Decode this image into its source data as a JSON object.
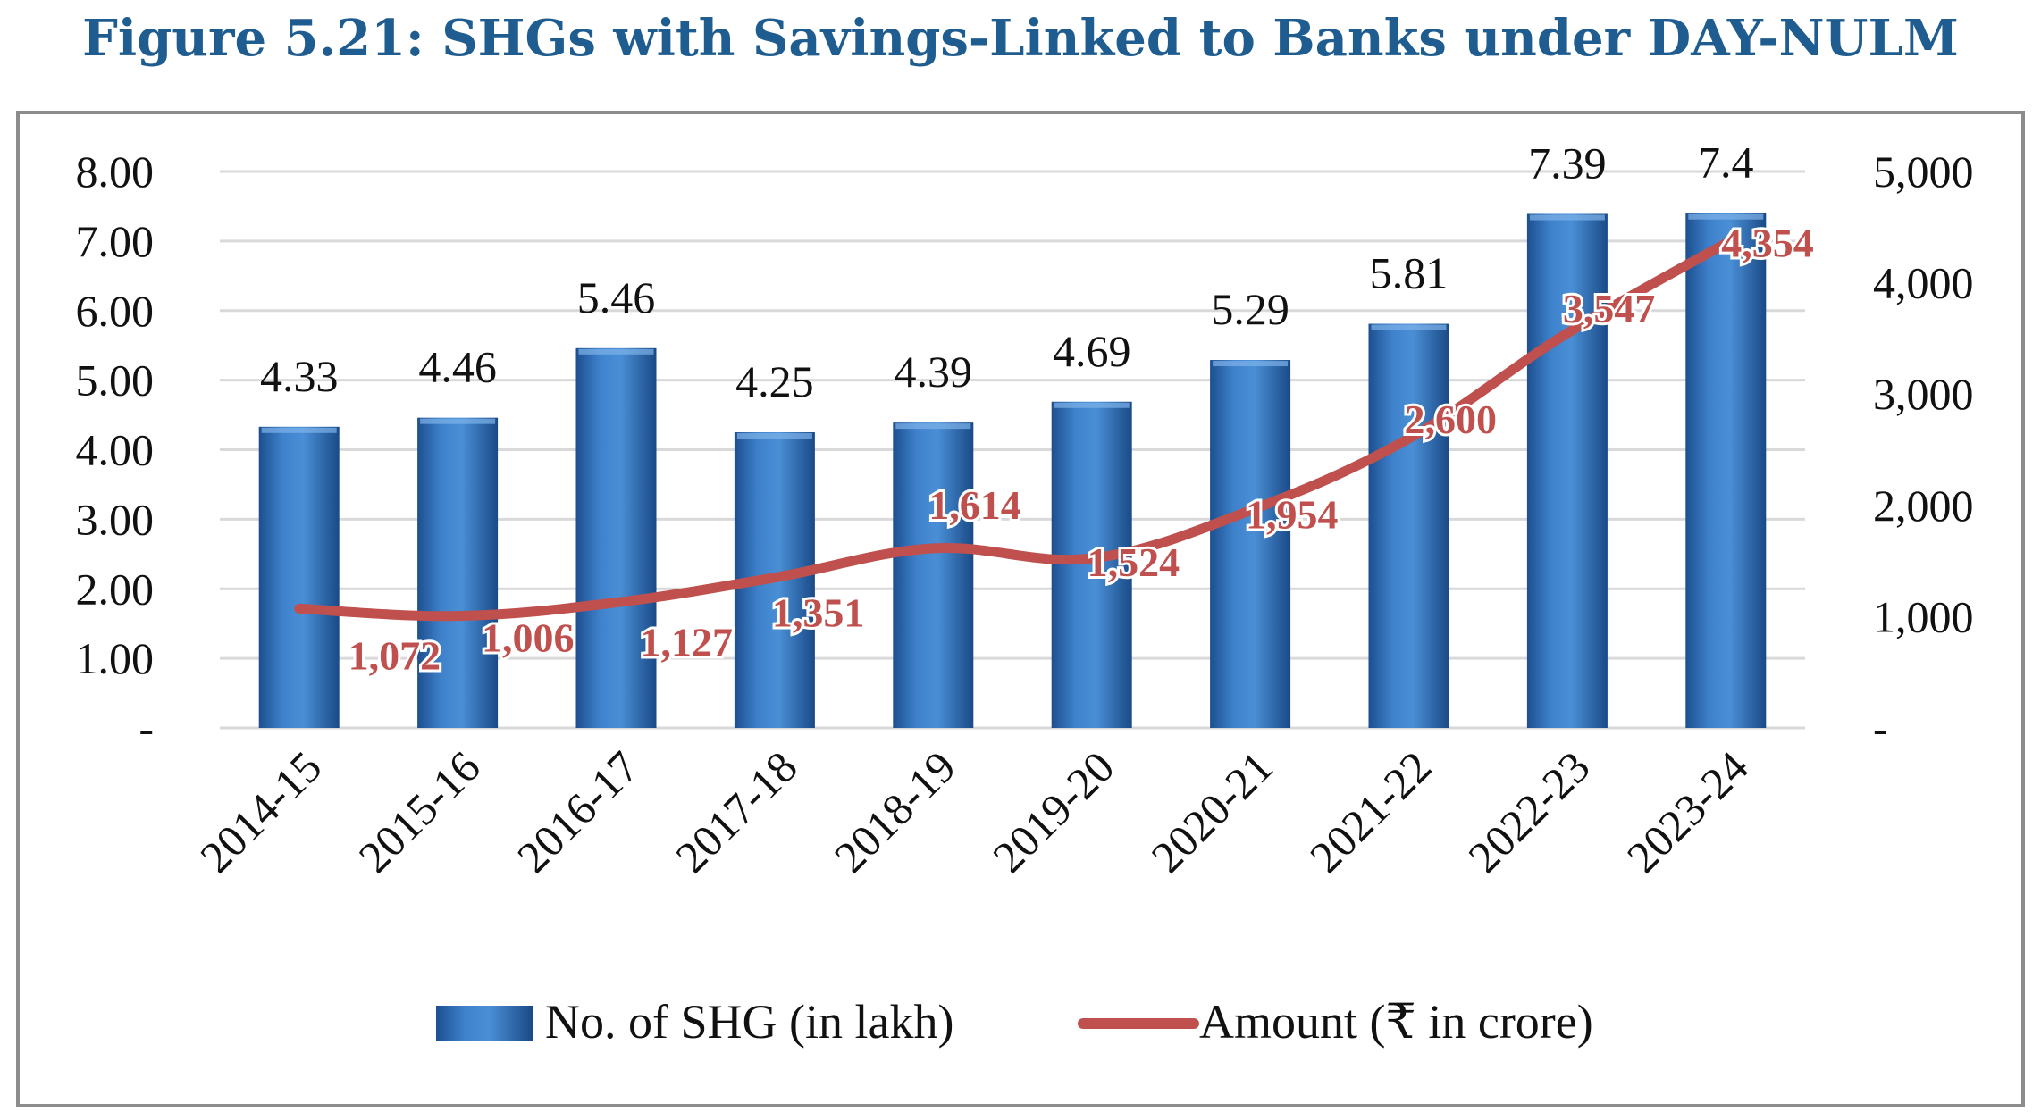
{
  "chart_data": {
    "type": "bar+line",
    "title": "Figure 5.21: SHGs with Savings-Linked to Banks under DAY-NULM",
    "categories": [
      "2014-15",
      "2015-16",
      "2016-17",
      "2017-18",
      "2018-19",
      "2019-20",
      "2020-21",
      "2021-22",
      "2022-23",
      "2023-24"
    ],
    "series": [
      {
        "name": "No. of SHG (in lakh)",
        "type": "bar",
        "axis": "left",
        "values": [
          4.33,
          4.46,
          5.46,
          4.25,
          4.39,
          4.69,
          5.29,
          5.81,
          7.39,
          7.4
        ],
        "labels": [
          "4.33",
          "4.46",
          "5.46",
          "4.25",
          "4.39",
          "4.69",
          "5.29",
          "5.81",
          "7.39",
          "7.4"
        ],
        "color": "#2e6db4"
      },
      {
        "name": "Amount (₹ in crore)",
        "type": "line",
        "axis": "right",
        "values": [
          1072,
          1006,
          1127,
          1351,
          1614,
          1524,
          1954,
          2600,
          3547,
          4354
        ],
        "labels": [
          "1,072",
          "1,006",
          "1,127",
          "1,351",
          "1,614",
          "1,524",
          "1,954",
          "2,600",
          "3,547",
          "4,354"
        ],
        "color": "#c0504d"
      }
    ],
    "left_axis": {
      "ylim": [
        0,
        8
      ],
      "ticks": [
        0,
        1,
        2,
        3,
        4,
        5,
        6,
        7,
        8
      ],
      "tick_labels": [
        "-",
        "1.00",
        "2.00",
        "3.00",
        "4.00",
        "5.00",
        "6.00",
        "7.00",
        "8.00"
      ]
    },
    "right_axis": {
      "ylim": [
        0,
        5000
      ],
      "ticks": [
        0,
        1000,
        2000,
        3000,
        4000,
        5000
      ],
      "tick_labels": [
        "-",
        "1,000",
        "2,000",
        "3,000",
        "4,000",
        "5,000"
      ]
    },
    "grid": true,
    "legend": "bottom",
    "title_color": "#1f5c8f"
  }
}
